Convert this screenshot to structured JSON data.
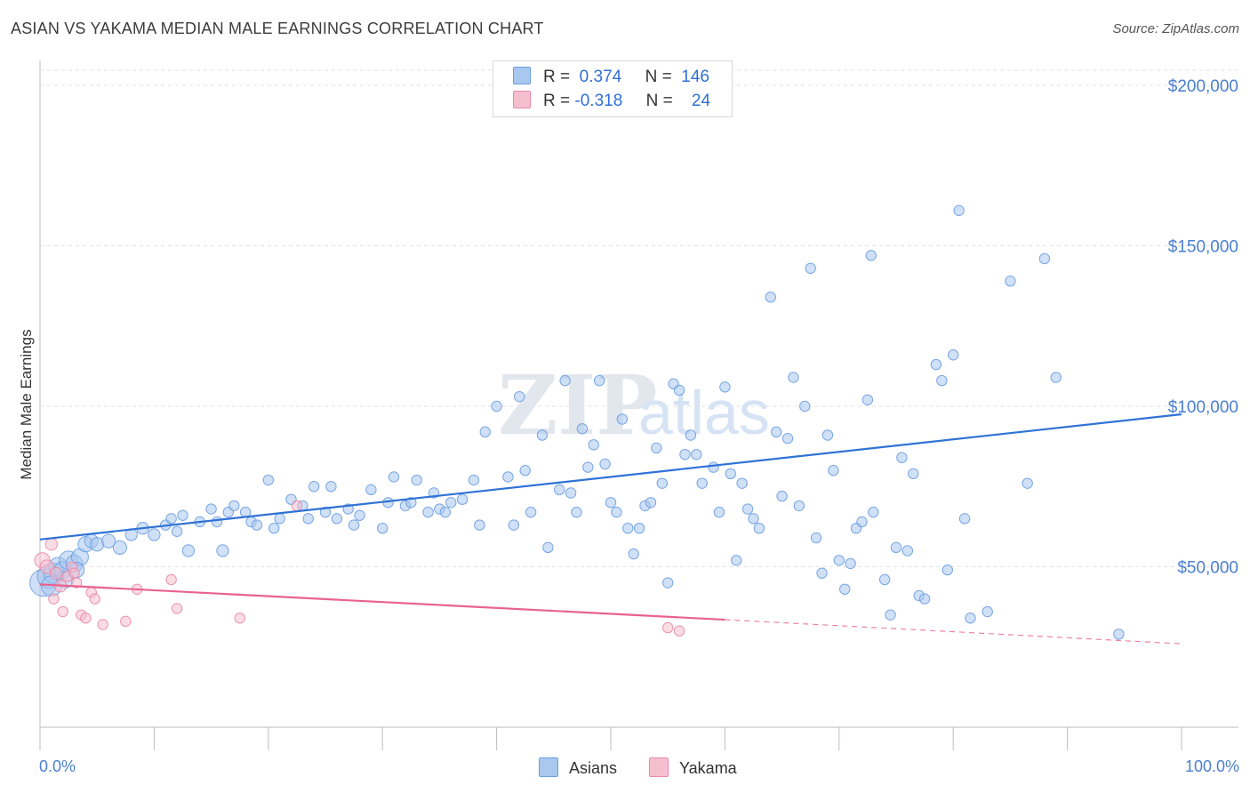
{
  "header": {
    "title": "ASIAN VS YAKAMA MEDIAN MALE EARNINGS CORRELATION CHART",
    "source": "Source: ZipAtlas.com"
  },
  "watermark": {
    "zip": "ZIP",
    "atlas": "atlas"
  },
  "legend": {
    "rows": [
      {
        "r_label": "R =",
        "r_value": "0.374",
        "n_label": "N =",
        "n_value": "146"
      },
      {
        "r_label": "R =",
        "r_value": "-0.318",
        "n_label": "N =",
        "n_value": "24"
      }
    ]
  },
  "colors": {
    "asians_fill": "#a9c8f0",
    "asians_stroke": "#6b9de0",
    "asians_line": "#2f72d6",
    "yakama_fill": "#f6bfd0",
    "yakama_stroke": "#e889a8",
    "yakama_line": "#e8638f"
  },
  "chart_data": {
    "type": "scatter",
    "title": "ASIAN VS YAKAMA MEDIAN MALE EARNINGS CORRELATION CHART",
    "ylabel": "Median Male Earnings",
    "xlim": [
      0,
      100
    ],
    "ylim": [
      0,
      210000
    ],
    "x_tick_labels": [
      "0.0%",
      "100.0%"
    ],
    "y_ticks": [
      {
        "value": 50000,
        "label": "$50,000"
      },
      {
        "value": 100000,
        "label": "$100,000"
      },
      {
        "value": 150000,
        "label": "$150,000"
      },
      {
        "value": 200000,
        "label": "$200,000"
      }
    ],
    "grid": "horizontal-dashed",
    "legend_position": "bottom-center",
    "series": [
      {
        "name": "Asians",
        "r": 0.374,
        "n": 146,
        "trend": {
          "x": [
            0,
            100
          ],
          "y": [
            58500,
            97500
          ]
        },
        "points": [
          [
            0.3,
            45000,
            1.6
          ],
          [
            0.8,
            47000,
            1.4
          ],
          [
            1.2,
            48000,
            1.2
          ],
          [
            1.6,
            50000,
            1.1
          ],
          [
            2.0,
            49000,
            1.0
          ],
          [
            2.5,
            52000,
            1.1
          ],
          [
            3.0,
            51000,
            1.0
          ],
          [
            3.5,
            53000,
            1.0
          ],
          [
            4.0,
            57000,
            0.9
          ],
          [
            4.5,
            58000,
            0.8
          ],
          [
            5.0,
            57000,
            0.8
          ],
          [
            6.0,
            58000,
            0.8
          ],
          [
            7.0,
            56000,
            0.8
          ],
          [
            8.0,
            60000,
            0.7
          ],
          [
            9.0,
            62000,
            0.7
          ],
          [
            10.0,
            60000,
            0.7
          ],
          [
            11.0,
            63000,
            0.6
          ],
          [
            12.0,
            61000,
            0.6
          ],
          [
            11.5,
            65000,
            0.6
          ],
          [
            12.5,
            66000,
            0.6
          ],
          [
            13.0,
            55000,
            0.7
          ],
          [
            14.0,
            64000,
            0.6
          ],
          [
            15.0,
            68000,
            0.6
          ],
          [
            15.5,
            64000,
            0.6
          ],
          [
            16.0,
            55000,
            0.7
          ],
          [
            16.5,
            67000,
            0.6
          ],
          [
            17.0,
            69000,
            0.6
          ],
          [
            18.0,
            67000,
            0.6
          ],
          [
            18.5,
            64000,
            0.6
          ],
          [
            19.0,
            63000,
            0.6
          ],
          [
            20.0,
            77000,
            0.6
          ],
          [
            20.5,
            62000,
            0.6
          ],
          [
            21.0,
            65000,
            0.6
          ],
          [
            22.0,
            71000,
            0.6
          ],
          [
            23.0,
            69000,
            0.6
          ],
          [
            23.5,
            65000,
            0.6
          ],
          [
            24.0,
            75000,
            0.6
          ],
          [
            25.0,
            67000,
            0.6
          ],
          [
            25.5,
            75000,
            0.6
          ],
          [
            26.0,
            65000,
            0.6
          ],
          [
            27.0,
            68000,
            0.6
          ],
          [
            27.5,
            63000,
            0.6
          ],
          [
            28.0,
            66000,
            0.6
          ],
          [
            29.0,
            74000,
            0.6
          ],
          [
            30.0,
            62000,
            0.6
          ],
          [
            30.5,
            70000,
            0.6
          ],
          [
            31.0,
            78000,
            0.6
          ],
          [
            32.0,
            69000,
            0.6
          ],
          [
            32.5,
            70000,
            0.6
          ],
          [
            33.0,
            77000,
            0.6
          ],
          [
            34.0,
            67000,
            0.6
          ],
          [
            34.5,
            73000,
            0.6
          ],
          [
            35.0,
            68000,
            0.6
          ],
          [
            35.5,
            67000,
            0.6
          ],
          [
            36.0,
            70000,
            0.6
          ],
          [
            37.0,
            71000,
            0.6
          ],
          [
            38.0,
            77000,
            0.6
          ],
          [
            38.5,
            63000,
            0.6
          ],
          [
            39.0,
            92000,
            0.6
          ],
          [
            40.0,
            100000,
            0.6
          ],
          [
            41.0,
            78000,
            0.6
          ],
          [
            41.5,
            63000,
            0.6
          ],
          [
            42.0,
            103000,
            0.6
          ],
          [
            42.5,
            80000,
            0.6
          ],
          [
            43.0,
            67000,
            0.6
          ],
          [
            44.0,
            91000,
            0.6
          ],
          [
            44.5,
            56000,
            0.6
          ],
          [
            45.5,
            74000,
            0.6
          ],
          [
            46.0,
            108000,
            0.6
          ],
          [
            46.5,
            73000,
            0.6
          ],
          [
            47.0,
            67000,
            0.6
          ],
          [
            47.5,
            93000,
            0.6
          ],
          [
            48.0,
            81000,
            0.6
          ],
          [
            48.5,
            88000,
            0.6
          ],
          [
            49.0,
            108000,
            0.6
          ],
          [
            49.5,
            82000,
            0.6
          ],
          [
            50.0,
            70000,
            0.6
          ],
          [
            50.5,
            67000,
            0.6
          ],
          [
            51.0,
            96000,
            0.6
          ],
          [
            51.5,
            62000,
            0.6
          ],
          [
            52.0,
            54000,
            0.6
          ],
          [
            52.5,
            62000,
            0.6
          ],
          [
            53.0,
            69000,
            0.6
          ],
          [
            53.5,
            70000,
            0.6
          ],
          [
            54.0,
            87000,
            0.6
          ],
          [
            54.5,
            76000,
            0.6
          ],
          [
            55.0,
            45000,
            0.6
          ],
          [
            55.5,
            107000,
            0.6
          ],
          [
            56.0,
            105000,
            0.6
          ],
          [
            56.5,
            85000,
            0.6
          ],
          [
            57.0,
            91000,
            0.6
          ],
          [
            57.5,
            85000,
            0.6
          ],
          [
            58.0,
            76000,
            0.6
          ],
          [
            59.0,
            81000,
            0.6
          ],
          [
            59.5,
            67000,
            0.6
          ],
          [
            60.0,
            106000,
            0.6
          ],
          [
            60.5,
            79000,
            0.6
          ],
          [
            61.0,
            52000,
            0.6
          ],
          [
            61.5,
            76000,
            0.6
          ],
          [
            62.0,
            68000,
            0.6
          ],
          [
            62.5,
            65000,
            0.6
          ],
          [
            63.0,
            62000,
            0.6
          ],
          [
            64.0,
            134000,
            0.6
          ],
          [
            64.5,
            92000,
            0.6
          ],
          [
            65.0,
            72000,
            0.6
          ],
          [
            65.5,
            90000,
            0.6
          ],
          [
            66.0,
            109000,
            0.6
          ],
          [
            66.5,
            69000,
            0.6
          ],
          [
            67.0,
            100000,
            0.6
          ],
          [
            67.5,
            143000,
            0.6
          ],
          [
            68.0,
            59000,
            0.6
          ],
          [
            68.5,
            48000,
            0.6
          ],
          [
            69.0,
            91000,
            0.6
          ],
          [
            69.5,
            80000,
            0.6
          ],
          [
            70.0,
            52000,
            0.6
          ],
          [
            70.5,
            43000,
            0.6
          ],
          [
            71.0,
            51000,
            0.6
          ],
          [
            71.5,
            62000,
            0.6
          ],
          [
            72.0,
            64000,
            0.6
          ],
          [
            72.5,
            102000,
            0.6
          ],
          [
            72.8,
            147000,
            0.6
          ],
          [
            73.0,
            67000,
            0.6
          ],
          [
            74.0,
            46000,
            0.6
          ],
          [
            74.5,
            35000,
            0.6
          ],
          [
            75.0,
            56000,
            0.6
          ],
          [
            75.5,
            84000,
            0.6
          ],
          [
            76.0,
            55000,
            0.6
          ],
          [
            76.5,
            79000,
            0.6
          ],
          [
            77.0,
            41000,
            0.6
          ],
          [
            77.5,
            40000,
            0.6
          ],
          [
            78.5,
            113000,
            0.6
          ],
          [
            79.0,
            108000,
            0.6
          ],
          [
            79.5,
            49000,
            0.6
          ],
          [
            80.0,
            116000,
            0.6
          ],
          [
            80.5,
            161000,
            0.6
          ],
          [
            81.0,
            65000,
            0.6
          ],
          [
            81.5,
            34000,
            0.6
          ],
          [
            83.0,
            36000,
            0.6
          ],
          [
            85.0,
            139000,
            0.6
          ],
          [
            86.5,
            76000,
            0.6
          ],
          [
            88.0,
            146000,
            0.6
          ],
          [
            89.0,
            109000,
            0.6
          ],
          [
            94.5,
            29000,
            0.6
          ],
          [
            1.0,
            44000,
            1.2
          ],
          [
            2.2,
            46000,
            1.0
          ],
          [
            3.2,
            49000,
            0.9
          ]
        ]
      },
      {
        "name": "Yakama",
        "r": -0.318,
        "n": 24,
        "trend": {
          "x": [
            0,
            60
          ],
          "y": [
            44500,
            33500
          ]
        },
        "trend_dashed": {
          "x": [
            60,
            100
          ],
          "y": [
            33500,
            26000
          ]
        },
        "points": [
          [
            0.2,
            52000,
            0.9
          ],
          [
            0.6,
            50000,
            0.8
          ],
          [
            1.0,
            57000,
            0.7
          ],
          [
            1.4,
            48000,
            0.7
          ],
          [
            1.8,
            44000,
            0.7
          ],
          [
            2.0,
            36000,
            0.6
          ],
          [
            2.4,
            47000,
            0.6
          ],
          [
            2.8,
            50000,
            0.6
          ],
          [
            3.2,
            45000,
            0.6
          ],
          [
            3.6,
            35000,
            0.6
          ],
          [
            4.0,
            34000,
            0.6
          ],
          [
            4.5,
            42000,
            0.6
          ],
          [
            4.8,
            40000,
            0.6
          ],
          [
            5.5,
            32000,
            0.6
          ],
          [
            7.5,
            33000,
            0.6
          ],
          [
            8.5,
            43000,
            0.6
          ],
          [
            11.5,
            46000,
            0.6
          ],
          [
            12.0,
            37000,
            0.6
          ],
          [
            17.5,
            34000,
            0.6
          ],
          [
            22.5,
            69000,
            0.6
          ],
          [
            55.0,
            31000,
            0.6
          ],
          [
            56.0,
            30000,
            0.6
          ],
          [
            1.2,
            40000,
            0.6
          ],
          [
            3.0,
            48000,
            0.6
          ]
        ]
      }
    ]
  }
}
